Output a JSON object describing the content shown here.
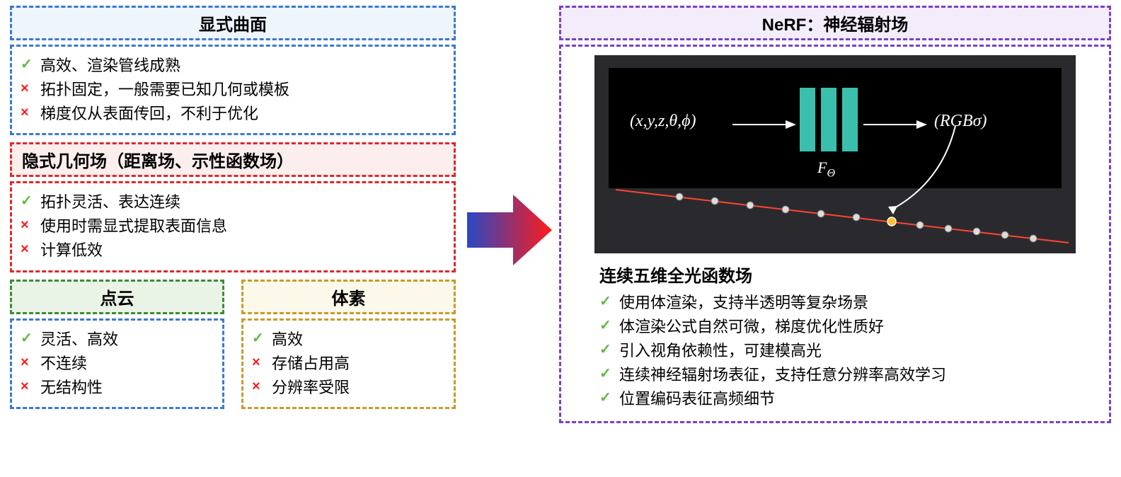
{
  "colors": {
    "check": "#5fb83f",
    "cross": "#ff1a1a",
    "blue_border": "#3a78d6",
    "blue_bg": "#eef5fc",
    "red_border": "#e02828",
    "red_bg": "#fdeeee",
    "green_border": "#3c8a3c",
    "green_bg": "#eaf4e6",
    "yellow_border": "#c89b2a",
    "yellow_bg": "#fcf8ea",
    "purple_border": "#7a3fc9",
    "purple_bg": "#f3edfb",
    "white": "#ffffff",
    "teal": "#3bbfad",
    "dark": "#2a2a2e"
  },
  "left": {
    "explicit": {
      "title": "显式曲面",
      "items": [
        {
          "mark": "✓",
          "ok": true,
          "text": "高效、渲染管线成熟"
        },
        {
          "mark": "×",
          "ok": false,
          "text": "拓扑固定，一般需要已知几何或模板"
        },
        {
          "mark": "×",
          "ok": false,
          "text": "梯度仅从表面传回，不利于优化"
        }
      ]
    },
    "implicit": {
      "title": "隐式几何场（距离场、示性函数场）",
      "items": [
        {
          "mark": "✓",
          "ok": true,
          "text": "拓扑灵活、表达连续"
        },
        {
          "mark": "×",
          "ok": false,
          "text": "使用时需显式提取表面信息"
        },
        {
          "mark": "×",
          "ok": false,
          "text": "计算低效"
        }
      ]
    },
    "pointcloud": {
      "title": "点云",
      "items": [
        {
          "mark": "✓",
          "ok": true,
          "text": "灵活、高效"
        },
        {
          "mark": "×",
          "ok": false,
          "text": "不连续"
        },
        {
          "mark": "×",
          "ok": false,
          "text": "无结构性"
        }
      ]
    },
    "voxel": {
      "title": "体素",
      "items": [
        {
          "mark": "✓",
          "ok": true,
          "text": "高效"
        },
        {
          "mark": "×",
          "ok": false,
          "text": "存储占用高"
        },
        {
          "mark": "×",
          "ok": false,
          "text": "分辨率受限"
        }
      ]
    }
  },
  "right": {
    "title": "NeRF：神经辐射场",
    "subtitle": "连续五维全光函数场",
    "items": [
      {
        "mark": "✓",
        "ok": true,
        "text": "使用体渲染，支持半透明等复杂场景"
      },
      {
        "mark": "✓",
        "ok": true,
        "text": "体渲染公式自然可微，梯度优化性质好"
      },
      {
        "mark": "✓",
        "ok": true,
        "text": "引入视角依赖性，可建模高光"
      },
      {
        "mark": "✓",
        "ok": true,
        "text": "连续神经辐射场表征，支持任意分辨率高效学习"
      },
      {
        "mark": "✓",
        "ok": true,
        "text": "位置编码表征高频细节"
      }
    ],
    "diagram": {
      "input": "(x,y,z,θ,ϕ)",
      "fn": "F",
      "fn_sub": "Θ",
      "output": "(RGBσ)"
    }
  },
  "arrow": {
    "grad_from": "#2948c4",
    "grad_to": "#ff1a1a"
  }
}
